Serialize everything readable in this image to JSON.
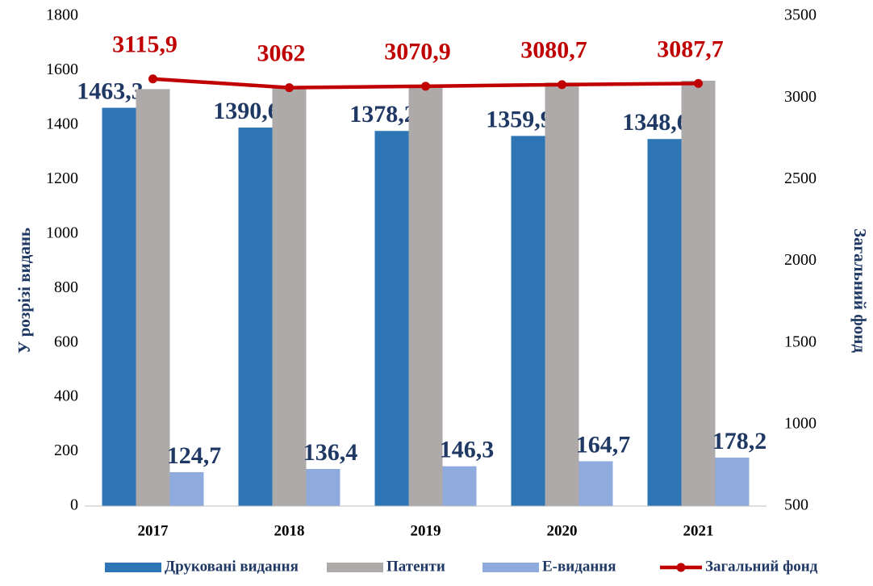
{
  "chart_data": {
    "type": "bar",
    "categories": [
      "2017",
      "2018",
      "2019",
      "2020",
      "2021"
    ],
    "y_label": "У розрізі видань",
    "y2_label": "Загальний фонд",
    "ylim": [
      0,
      1800
    ],
    "yticks": [
      0,
      200,
      400,
      600,
      800,
      1000,
      1200,
      1400,
      1600,
      1800
    ],
    "y2lim": [
      500,
      3500
    ],
    "y2ticks": [
      500,
      1000,
      1500,
      2000,
      2500,
      3000,
      3500
    ],
    "series": [
      {
        "name": "Друковані видання",
        "type": "bar",
        "color": "#2e75b6",
        "values": [
          1463.3,
          1390.6,
          1378.2,
          1359.9,
          1348.6
        ],
        "value_labels": [
          "1463,3",
          "1390,6",
          "1378,2",
          "1359,9",
          "1348,6"
        ]
      },
      {
        "name": "Патенти",
        "type": "bar",
        "color": "#aeaaaa",
        "values": [
          1532,
          1536,
          1546,
          1556,
          1563
        ]
      },
      {
        "name": "Е-видання",
        "type": "bar",
        "color": "#8faadc",
        "values": [
          124.7,
          136.4,
          146.3,
          164.7,
          178.2
        ],
        "value_labels": [
          "124,7",
          "136,4",
          "146,3",
          "164,7",
          "178,2"
        ]
      },
      {
        "name": "Загальний фонд",
        "type": "line",
        "axis": "y2",
        "color": "#c00000",
        "values": [
          3115.9,
          3062,
          3070.9,
          3080.7,
          3087.7
        ],
        "value_labels": [
          "3115,9",
          "3062",
          "3070,9",
          "3080,7",
          "3087,7"
        ]
      }
    ]
  }
}
